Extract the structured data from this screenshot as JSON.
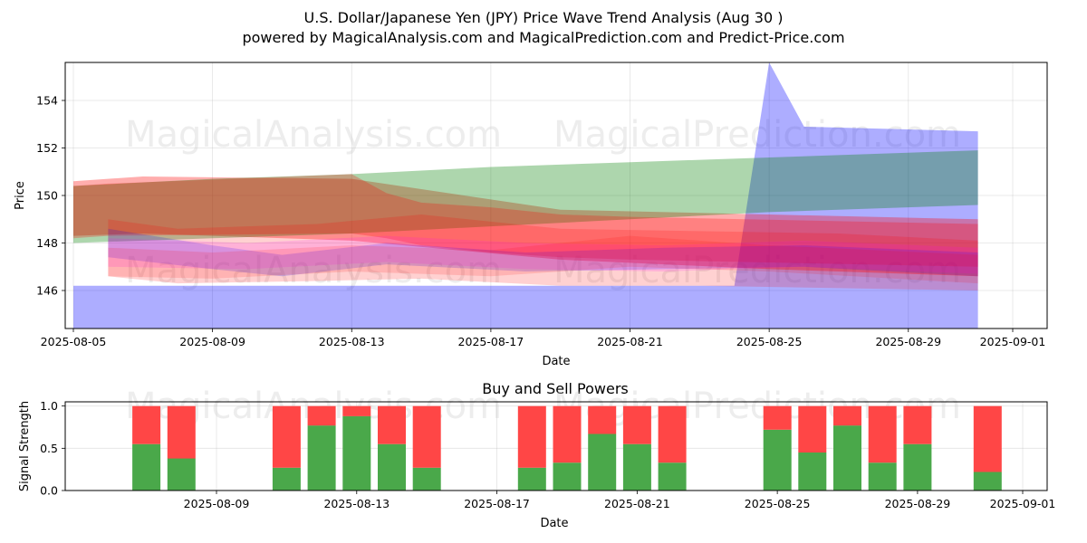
{
  "chart_data": [
    {
      "type": "area",
      "title": "U.S. Dollar/Japanese Yen (JPY) Price Wave Trend Analysis (Aug 30 )",
      "subtitle": "powered by MagicalAnalysis.com and MagicalPrediction.com and Predict-Price.com",
      "xlabel": "Date",
      "ylabel": "Price",
      "xlim": [
        "2025-08-05",
        "2025-09-01"
      ],
      "ylim": [
        144.4,
        155.6
      ],
      "x_ticks": [
        "2025-08-05",
        "2025-08-09",
        "2025-08-13",
        "2025-08-17",
        "2025-08-21",
        "2025-08-25",
        "2025-08-29",
        "2025-09-01"
      ],
      "y_ticks": [
        146,
        148,
        150,
        152,
        154
      ],
      "grid": true,
      "watermarks": [
        "MagicalAnalysis.com",
        "MagicalPrediction.com"
      ],
      "bands": [
        {
          "color": "#0000ff",
          "alpha": 0.32,
          "x": [
            "2025-08-05",
            "2025-08-24",
            "2025-08-25",
            "2025-08-26",
            "2025-08-31"
          ],
          "upper": [
            146.2,
            146.2,
            155.6,
            152.9,
            152.7
          ],
          "lower": [
            144.4,
            144.4,
            144.4,
            144.4,
            144.4
          ]
        },
        {
          "color": "#ff0000",
          "alpha": 0.32,
          "x": [
            "2025-08-05",
            "2025-08-07",
            "2025-08-13",
            "2025-08-19",
            "2025-08-25",
            "2025-08-31"
          ],
          "upper": [
            150.6,
            150.8,
            150.7,
            149.4,
            149.2,
            149.0
          ],
          "lower": [
            148.3,
            148.4,
            148.1,
            147.3,
            146.9,
            146.6
          ]
        },
        {
          "color": "#008000",
          "alpha": 0.32,
          "x": [
            "2025-08-05",
            "2025-08-09",
            "2025-08-13",
            "2025-08-17",
            "2025-08-21",
            "2025-08-25",
            "2025-08-31"
          ],
          "upper": [
            150.4,
            150.7,
            150.9,
            151.2,
            151.4,
            151.6,
            151.9
          ],
          "lower": [
            148.0,
            148.2,
            148.4,
            148.7,
            149.0,
            149.3,
            149.6
          ]
        },
        {
          "color": "#ff0000",
          "alpha": 0.25,
          "x": [
            "2025-08-05",
            "2025-08-06",
            "2025-08-13",
            "2025-08-14",
            "2025-08-15",
            "2025-08-17",
            "2025-08-19",
            "2025-08-21",
            "2025-08-31"
          ],
          "upper": [
            150.4,
            150.5,
            150.9,
            150.1,
            149.7,
            149.5,
            149.2,
            149.1,
            148.8
          ],
          "lower": [
            148.2,
            148.3,
            148.4,
            148.2,
            147.9,
            147.6,
            147.4,
            147.3,
            147.0
          ]
        },
        {
          "color": "#ff0000",
          "alpha": 0.18,
          "x": [
            "2025-08-06",
            "2025-08-08",
            "2025-08-12",
            "2025-08-15",
            "2025-08-19",
            "2025-08-23",
            "2025-08-27",
            "2025-08-31"
          ],
          "upper": [
            149.0,
            148.6,
            148.8,
            149.2,
            148.6,
            148.5,
            148.4,
            148.1
          ],
          "lower": [
            146.6,
            146.3,
            146.4,
            146.5,
            146.2,
            146.2,
            146.1,
            146.0
          ]
        },
        {
          "color": "#0000ff",
          "alpha": 0.18,
          "x": [
            "2025-08-06",
            "2025-08-09",
            "2025-08-11",
            "2025-08-14",
            "2025-08-18",
            "2025-08-22",
            "2025-08-26",
            "2025-08-31"
          ],
          "upper": [
            148.6,
            147.9,
            147.5,
            148.0,
            147.6,
            147.8,
            147.9,
            147.6
          ],
          "lower": [
            147.4,
            146.9,
            146.6,
            147.1,
            146.8,
            146.9,
            147.0,
            146.6
          ]
        },
        {
          "color": "#ff00ff",
          "alpha": 0.15,
          "x": [
            "2025-08-06",
            "2025-08-10",
            "2025-08-14",
            "2025-08-18",
            "2025-08-22",
            "2025-08-26",
            "2025-08-31"
          ],
          "upper": [
            148.2,
            148.0,
            148.3,
            148.0,
            147.9,
            148.1,
            147.8
          ],
          "lower": [
            147.0,
            146.9,
            147.2,
            146.9,
            146.8,
            147.0,
            146.7
          ]
        },
        {
          "color": "#ff0000",
          "alpha": 0.14,
          "x": [
            "2025-08-06",
            "2025-08-09",
            "2025-08-13",
            "2025-08-17",
            "2025-08-21",
            "2025-08-25",
            "2025-08-31"
          ],
          "upper": [
            147.8,
            147.6,
            147.9,
            147.7,
            148.3,
            147.9,
            147.5
          ],
          "lower": [
            146.6,
            146.5,
            146.8,
            146.6,
            147.0,
            146.8,
            146.3
          ]
        }
      ]
    },
    {
      "type": "bar",
      "title": "Buy and Sell Powers",
      "xlabel": "Date",
      "ylabel": "Signal Strength",
      "xlim": [
        "2025-08-04",
        "2025-09-02"
      ],
      "ylim": [
        0,
        1.05
      ],
      "x_ticks": [
        "2025-08-09",
        "2025-08-13",
        "2025-08-17",
        "2025-08-21",
        "2025-08-25",
        "2025-08-29",
        "2025-09-01"
      ],
      "y_ticks": [
        "0.0",
        "0.5",
        "1.0"
      ],
      "grid": true,
      "watermarks": [
        "MagicalAnalysis.com",
        "MagicalPrediction.com"
      ],
      "buy_color": "#4aa84a",
      "sell_color": "#ff4646",
      "dates": [
        "2025-08-07",
        "2025-08-08",
        "2025-08-11",
        "2025-08-12",
        "2025-08-13",
        "2025-08-14",
        "2025-08-15",
        "2025-08-18",
        "2025-08-19",
        "2025-08-20",
        "2025-08-21",
        "2025-08-22",
        "2025-08-25",
        "2025-08-26",
        "2025-08-27",
        "2025-08-28",
        "2025-08-29",
        "2025-08-31"
      ],
      "buy": [
        0.55,
        0.38,
        0.27,
        0.77,
        0.88,
        0.55,
        0.27,
        0.27,
        0.33,
        0.67,
        0.55,
        0.33,
        0.72,
        0.45,
        0.77,
        0.33,
        0.55,
        0.22
      ],
      "sell": [
        0.45,
        0.62,
        0.73,
        0.23,
        0.12,
        0.45,
        0.73,
        0.73,
        0.67,
        0.33,
        0.45,
        0.67,
        0.28,
        0.55,
        0.23,
        0.67,
        0.45,
        0.78
      ]
    }
  ]
}
